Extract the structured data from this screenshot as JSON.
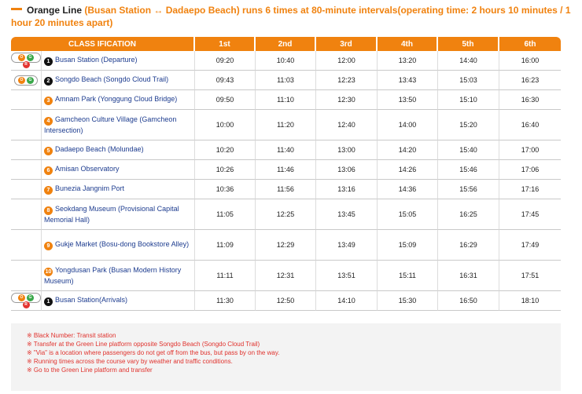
{
  "heading": {
    "title": "Orange Line",
    "description": "(Busan Station ↔ Dadaepo Beach) runs 6 times at 80-minute intervals(operating time: 2 hours 10 minutes / 1 hour 20 minutes apart)"
  },
  "table": {
    "classification_header": "CLASS IFICATION",
    "run_headers": [
      "1st",
      "2nd",
      "3rd",
      "4th",
      "5th",
      "6th"
    ],
    "rows": [
      {
        "number": "1",
        "transit": true,
        "badge": [
          "O",
          "G",
          "R"
        ],
        "stop": "Busan Station (Departure)",
        "times": [
          "09:20",
          "10:40",
          "12:00",
          "13:20",
          "14:40",
          "16:00"
        ]
      },
      {
        "number": "2",
        "transit": true,
        "badge": [
          "O",
          "G"
        ],
        "stop": "Songdo Beach (Songdo Cloud Trail)",
        "times": [
          "09:43",
          "11:03",
          "12:23",
          "13:43",
          "15:03",
          "16:23"
        ]
      },
      {
        "number": "3",
        "transit": false,
        "badge": [],
        "stop": "Amnam Park (Yonggung Cloud Bridge)",
        "times": [
          "09:50",
          "11:10",
          "12:30",
          "13:50",
          "15:10",
          "16:30"
        ]
      },
      {
        "number": "4",
        "transit": false,
        "badge": [],
        "stop": "Gamcheon Culture Village (Gamcheon Intersection)",
        "times": [
          "10:00",
          "11:20",
          "12:40",
          "14:00",
          "15:20",
          "16:40"
        ]
      },
      {
        "number": "5",
        "transit": false,
        "badge": [],
        "stop": "Dadaepo Beach (Molundae)",
        "times": [
          "10:20",
          "11:40",
          "13:00",
          "14:20",
          "15:40",
          "17:00"
        ]
      },
      {
        "number": "6",
        "transit": false,
        "badge": [],
        "stop": "Amisan Observatory",
        "times": [
          "10:26",
          "11:46",
          "13:06",
          "14:26",
          "15:46",
          "17:06"
        ]
      },
      {
        "number": "7",
        "transit": false,
        "badge": [],
        "stop": "Bunezia Jangnim Port",
        "times": [
          "10:36",
          "11:56",
          "13:16",
          "14:36",
          "15:56",
          "17:16"
        ]
      },
      {
        "number": "8",
        "transit": false,
        "badge": [],
        "stop": "Seokdang Museum (Provisional Capital Memorial Hall)",
        "times": [
          "11:05",
          "12:25",
          "13:45",
          "15:05",
          "16:25",
          "17:45"
        ]
      },
      {
        "number": "9",
        "transit": false,
        "badge": [],
        "stop": "Gukje Market (Bosu-dong Bookstore Alley)",
        "times": [
          "11:09",
          "12:29",
          "13:49",
          "15:09",
          "16:29",
          "17:49"
        ]
      },
      {
        "number": "10",
        "transit": false,
        "badge": [],
        "stop": "Yongdusan Park (Busan Modern History Museum)",
        "times": [
          "11:11",
          "12:31",
          "13:51",
          "15:11",
          "16:31",
          "17:51"
        ]
      },
      {
        "number": "1",
        "transit": true,
        "badge": [
          "O",
          "G",
          "R"
        ],
        "stop": "Busan Station(Arrivals)",
        "times": [
          "11:30",
          "12:50",
          "14:10",
          "15:30",
          "16:50",
          "18:10"
        ]
      }
    ]
  },
  "notes": [
    "※ Black Number: Transit station",
    "※ Transfer at the Green Line platform opposite Songdo Beach (Songdo Cloud Trail)",
    "※ \"Via\" is a location where passengers do not get off from the bus, but pass by on the way.",
    "※ Running times across the course vary by weather and traffic conditions.",
    "※ Go to the Green Line platform and transfer"
  ],
  "colors": {
    "orange": "#f0820f",
    "green": "#3aa84a",
    "red": "#e3342f"
  }
}
